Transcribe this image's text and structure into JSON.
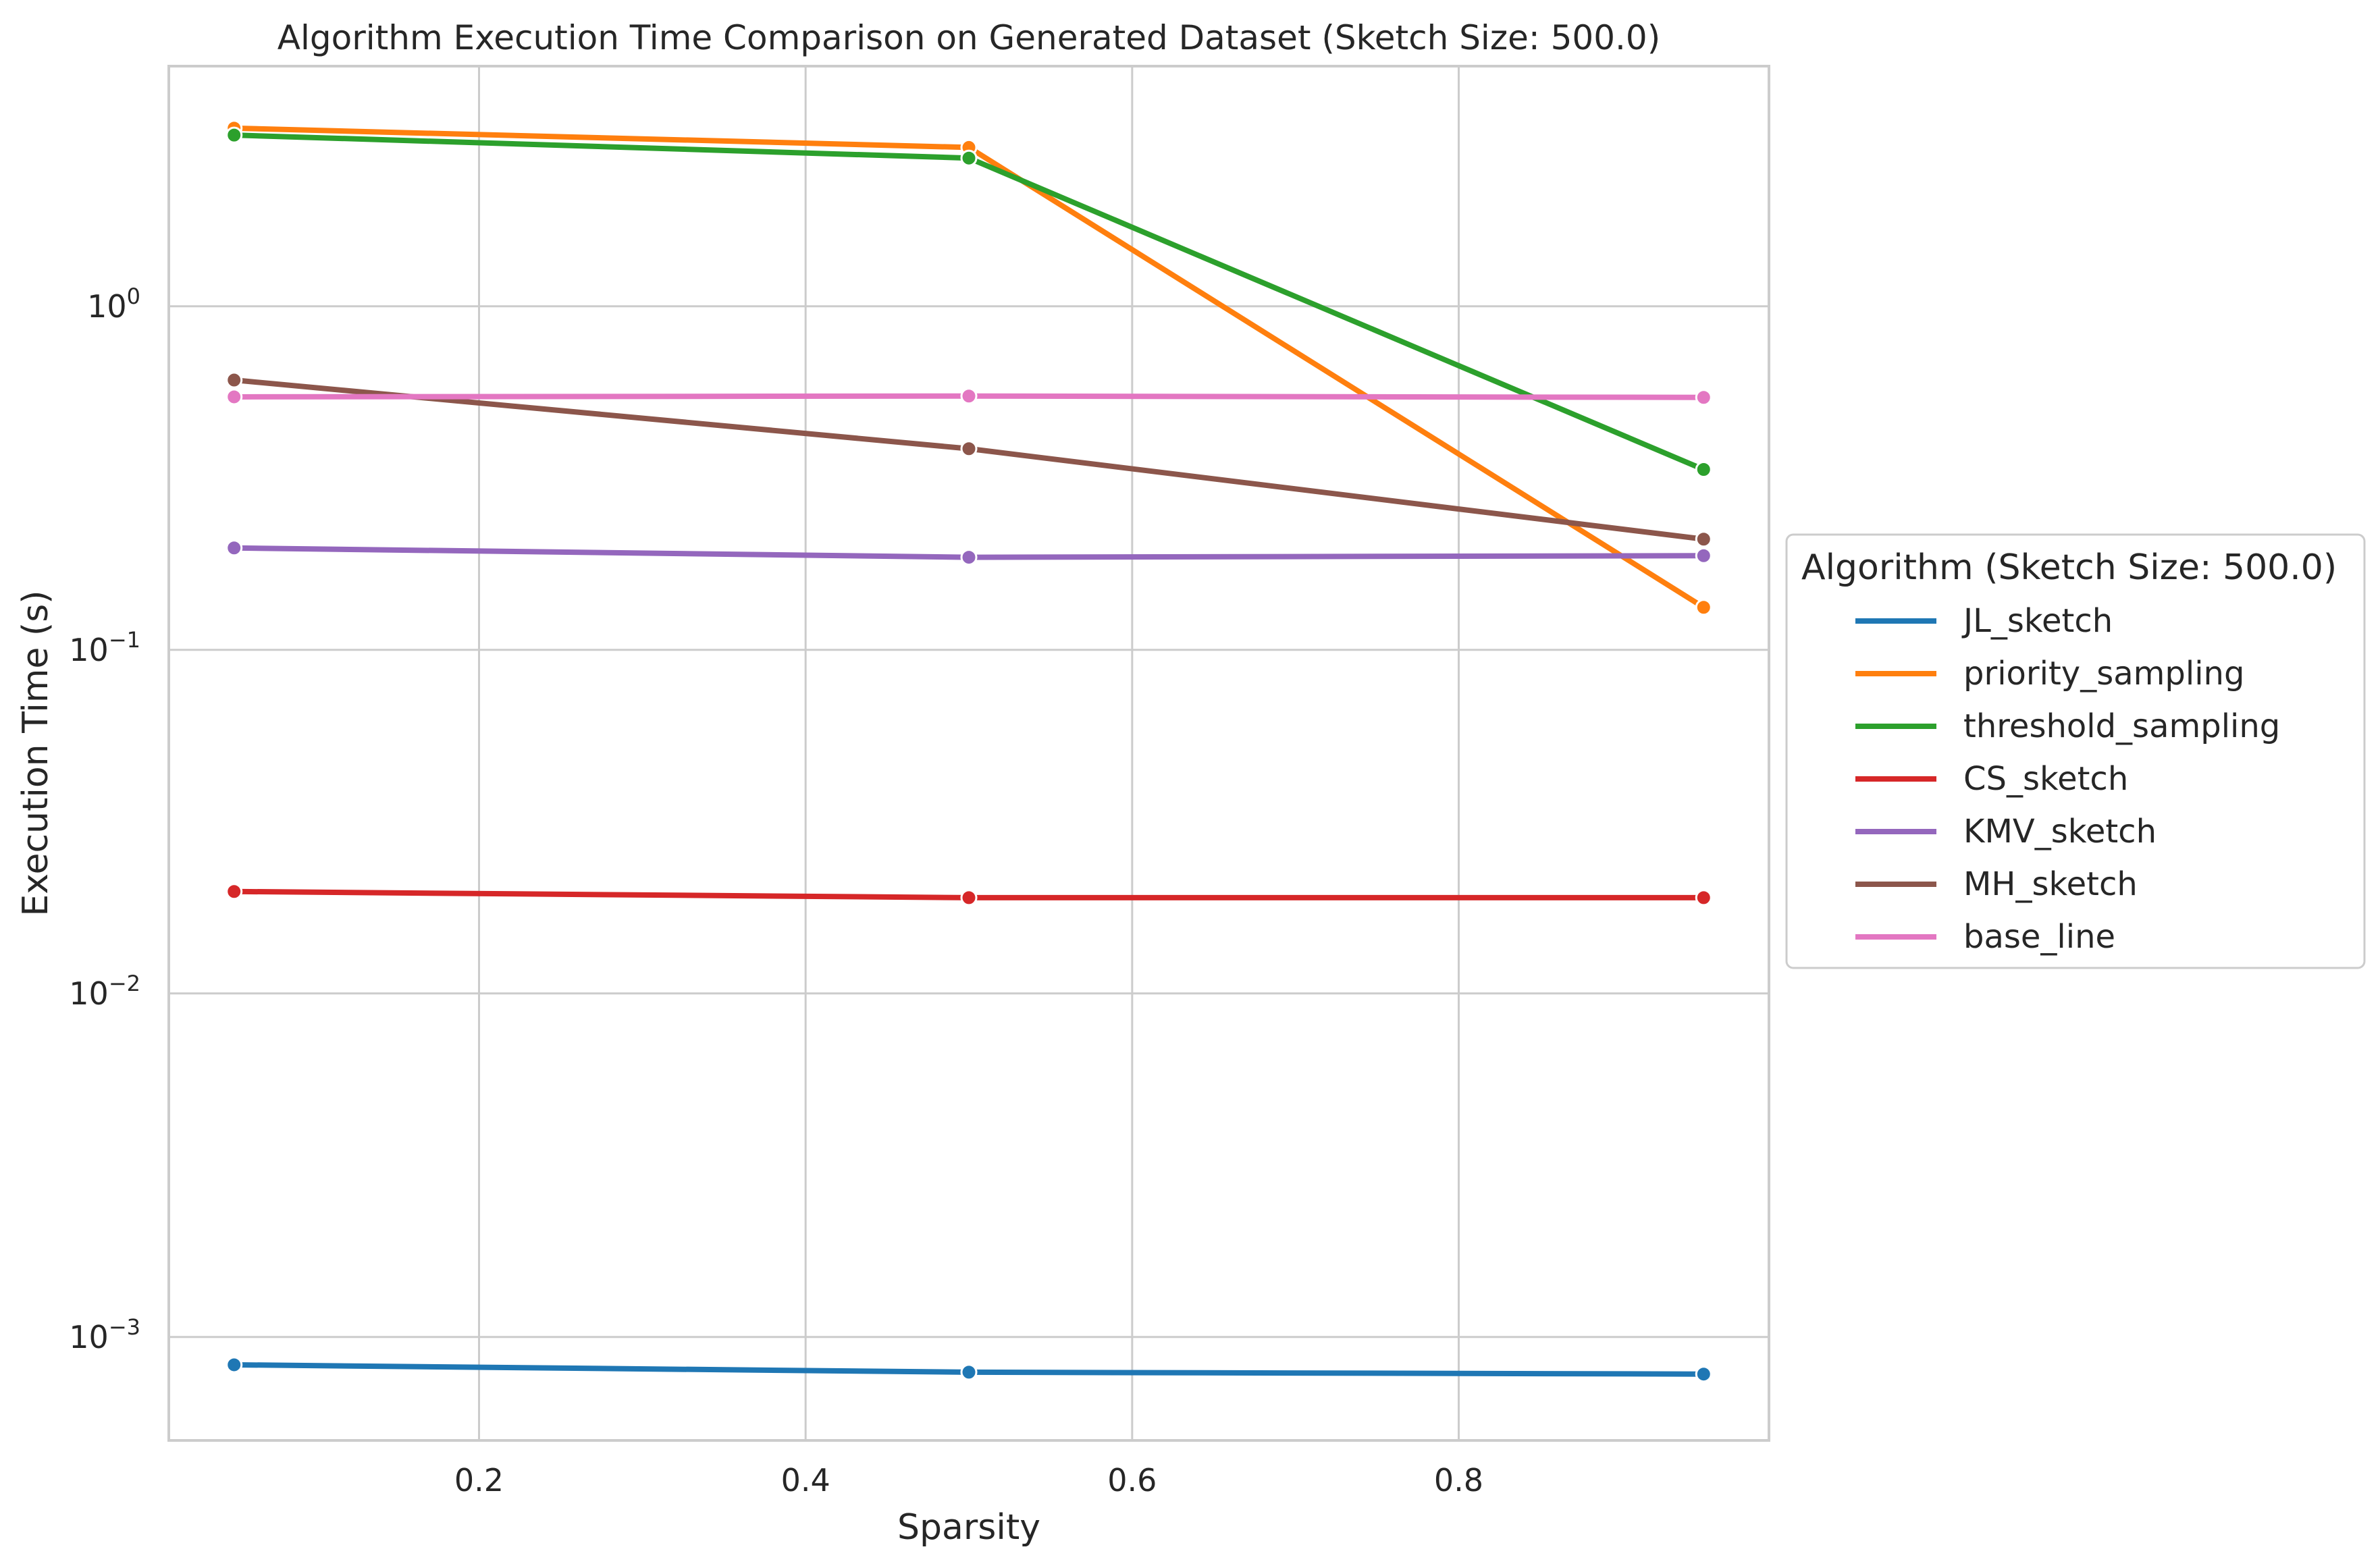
{
  "chart_data": {
    "type": "line",
    "title": "Algorithm Execution Time Comparison on Generated Dataset (Sketch Size: 500.0)",
    "xlabel": "Sparsity",
    "ylabel": "Execution Time (s)",
    "x_scale": "linear",
    "y_scale": "log",
    "xlim": [
      0.01,
      0.99
    ],
    "ylim": [
      0.0005,
      5.0
    ],
    "grid": true,
    "x_ticks": [
      {
        "value": 0.2,
        "label": "0.2"
      },
      {
        "value": 0.4,
        "label": "0.4"
      },
      {
        "value": 0.6,
        "label": "0.6"
      },
      {
        "value": 0.8,
        "label": "0.8"
      }
    ],
    "y_ticks": [
      {
        "value": 0.001,
        "base": "10",
        "exp": "−3"
      },
      {
        "value": 0.01,
        "base": "10",
        "exp": "−2"
      },
      {
        "value": 0.1,
        "base": "10",
        "exp": "−1"
      },
      {
        "value": 1,
        "base": "10",
        "exp": "0"
      }
    ],
    "legend": {
      "title": "Algorithm (Sketch Size: 500.0)",
      "placement": "center-right outside"
    },
    "x": [
      0.05,
      0.5,
      0.95
    ],
    "series": [
      {
        "name": "JL_sketch",
        "color": "#1f77b4",
        "values": [
          0.00083,
          0.00079,
          0.00078
        ]
      },
      {
        "name": "priority_sampling",
        "color": "#ff7f0e",
        "values": [
          3.3,
          2.9,
          0.133
        ]
      },
      {
        "name": "threshold_sampling",
        "color": "#2ca02c",
        "values": [
          3.15,
          2.7,
          0.335
        ]
      },
      {
        "name": "CS_sketch",
        "color": "#d62728",
        "values": [
          0.0198,
          0.019,
          0.019
        ]
      },
      {
        "name": "KMV_sketch",
        "color": "#9467bd",
        "values": [
          0.198,
          0.186,
          0.188
        ]
      },
      {
        "name": "MH_sketch",
        "color": "#8c564b",
        "values": [
          0.61,
          0.385,
          0.21
        ]
      },
      {
        "name": "base_line",
        "color": "#e377c2",
        "values": [
          0.545,
          0.548,
          0.543
        ]
      }
    ]
  }
}
